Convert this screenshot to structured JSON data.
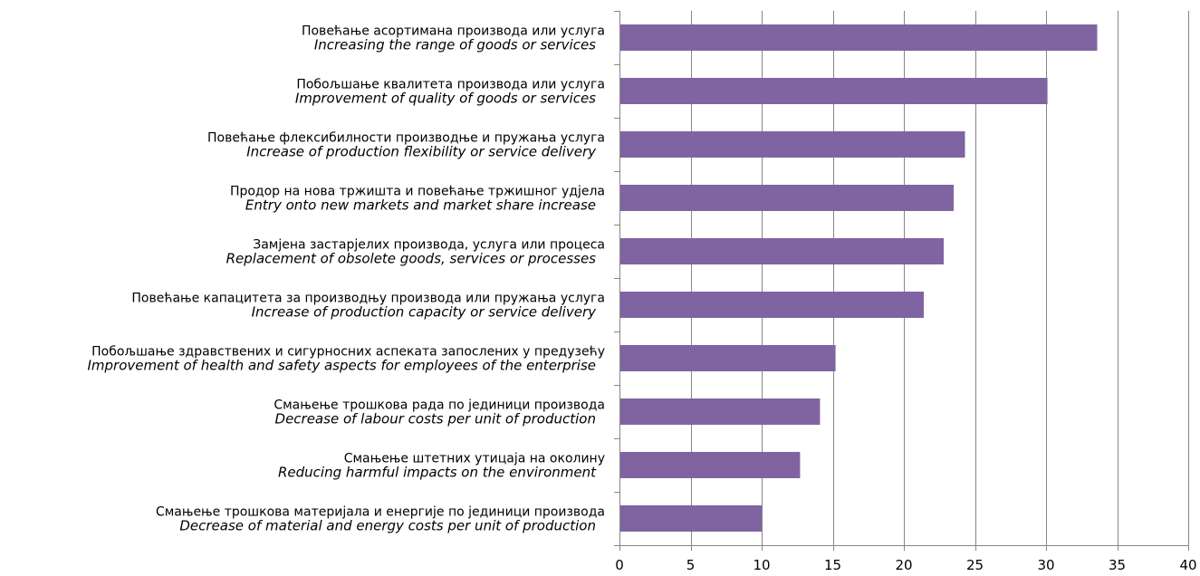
{
  "chart_data": {
    "type": "bar",
    "orientation": "horizontal",
    "categories": [
      {
        "sr": "Повећање асортимана производа или услуга",
        "en": "Increasing the range of goods or services"
      },
      {
        "sr": "Побољшање квалитета производа или услуга",
        "en": "Improvement of quality of goods or services"
      },
      {
        "sr": "Повећање флексибилности производње и пружања услуга",
        "en": "Increase of production flexibility or service delivery"
      },
      {
        "sr": "Продор на нова тржишта и повећање тржишног удјела",
        "en": "Entry onto new markets and market share increase"
      },
      {
        "sr": "Замјена застарјелих производа, услуга или процеса",
        "en": "Replacement of obsolete goods, services or processes"
      },
      {
        "sr": "Повећање капацитета за производњу производа или пружања услуга",
        "en": "Increase of production capacity or service delivery"
      },
      {
        "sr": "Побољшање здравствених и сигурносних аспеката запослених у предузећу",
        "en": "Improvement of health and safety aspects for employees of the enterprise"
      },
      {
        "sr": "Смањење трошкова рада по јединици производа",
        "en": "Decrease of labour costs per unit of production"
      },
      {
        "sr": "Смањење штетних утицаја на околину",
        "en": "Reducing harmful impacts on the environment"
      },
      {
        "sr": "Смањење трошкова материјала и енергије по јединици производа",
        "en": "Decrease of material and energy costs per unit of production"
      }
    ],
    "values": [
      33.6,
      30.1,
      24.3,
      23.5,
      22.8,
      21.4,
      15.2,
      14.1,
      12.7,
      10.0
    ],
    "xlim": [
      0,
      40
    ],
    "xticks": [
      0,
      5,
      10,
      15,
      20,
      25,
      30,
      35,
      40
    ],
    "grid": "vertical",
    "title": "",
    "xlabel": "",
    "ylabel": "",
    "colors": {
      "bar": "#8064A2",
      "grid": "#868686",
      "axis": "#868686"
    }
  }
}
